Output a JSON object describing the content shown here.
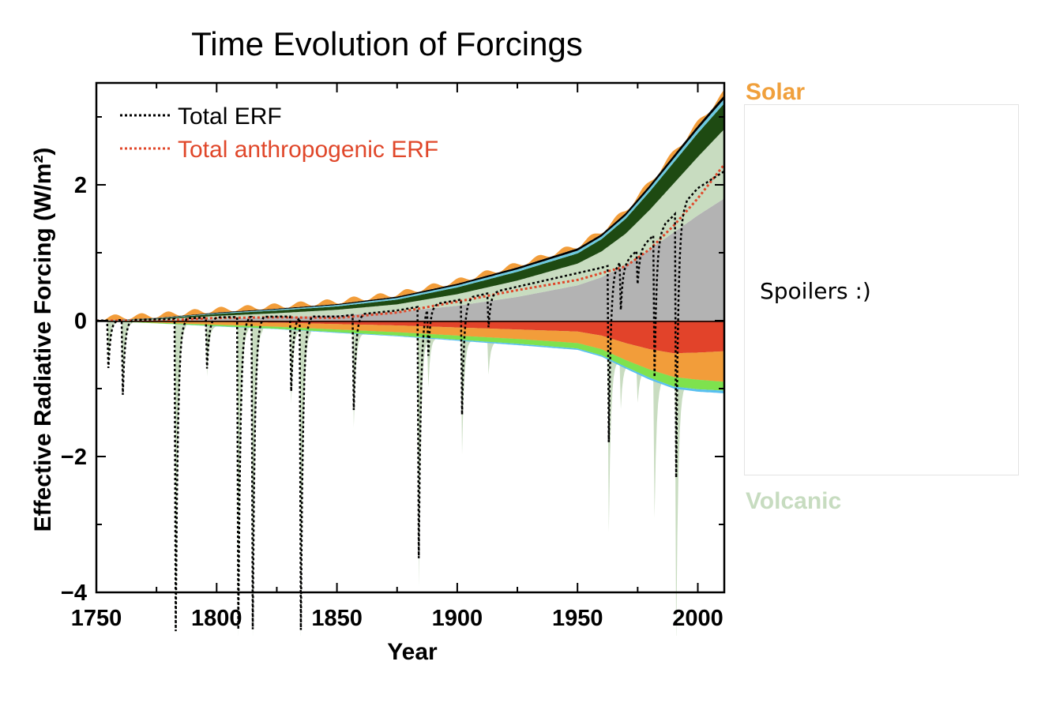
{
  "chart_data": {
    "type": "area",
    "title": "Time Evolution of Forcings",
    "xlabel": "Year",
    "ylabel": "Effective Radiative Forcing (W/m²)",
    "xlim": [
      1750,
      2011
    ],
    "ylim": [
      -4,
      3.5
    ],
    "xticks": [
      1750,
      1800,
      1850,
      1900,
      1950,
      2000
    ],
    "yticks": [
      {
        "value": 2,
        "label": "2"
      },
      {
        "value": 0,
        "label": "0"
      },
      {
        "value": -2,
        "label": "−2"
      },
      {
        "value": -4,
        "label": "−4"
      }
    ],
    "grid": false,
    "legend_position": "top-left",
    "legend": [
      {
        "label": "Total ERF",
        "color": "#000000",
        "style": "dotted"
      },
      {
        "label": "Total anthropogenic ERF",
        "color": "#e0472a",
        "style": "dotted"
      }
    ],
    "stack_positive": {
      "x": [
        1750,
        1775,
        1800,
        1825,
        1850,
        1875,
        1900,
        1925,
        1950,
        1960,
        1970,
        1980,
        1990,
        2000,
        2011
      ],
      "layers": [
        {
          "color": "#b3b3b3",
          "values": [
            0,
            0.01,
            0.03,
            0.05,
            0.08,
            0.13,
            0.22,
            0.35,
            0.52,
            0.64,
            0.82,
            1.05,
            1.3,
            1.55,
            1.8
          ]
        },
        {
          "color": "#c8dcc0",
          "values": [
            0,
            0.01,
            0.04,
            0.06,
            0.08,
            0.11,
            0.17,
            0.24,
            0.32,
            0.38,
            0.46,
            0.58,
            0.72,
            0.86,
            1.02
          ]
        },
        {
          "color": "#1e4a12",
          "values": [
            0,
            0.01,
            0.03,
            0.04,
            0.05,
            0.07,
            0.1,
            0.13,
            0.15,
            0.18,
            0.22,
            0.27,
            0.31,
            0.35,
            0.38
          ]
        },
        {
          "color": "#6cc9df",
          "values": [
            0,
            0.005,
            0.01,
            0.015,
            0.02,
            0.025,
            0.03,
            0.035,
            0.04,
            0.04,
            0.045,
            0.05,
            0.055,
            0.06,
            0.065
          ]
        },
        {
          "color": "#000000",
          "values": [
            0,
            0.005,
            0.01,
            0.012,
            0.015,
            0.02,
            0.025,
            0.03,
            0.035,
            0.035,
            0.04,
            0.045,
            0.05,
            0.05,
            0.055
          ]
        }
      ]
    },
    "stack_negative": {
      "x": [
        1750,
        1775,
        1800,
        1825,
        1850,
        1875,
        1900,
        1925,
        1950,
        1960,
        1970,
        1980,
        1990,
        2000,
        2011
      ],
      "layers": [
        {
          "color": "#e2432a",
          "values": [
            0,
            -0.01,
            -0.02,
            -0.03,
            -0.05,
            -0.07,
            -0.1,
            -0.13,
            -0.16,
            -0.22,
            -0.33,
            -0.42,
            -0.48,
            -0.47,
            -0.45
          ]
        },
        {
          "color": "#f29d3a",
          "values": [
            0,
            -0.02,
            -0.04,
            -0.06,
            -0.08,
            -0.1,
            -0.12,
            -0.14,
            -0.17,
            -0.2,
            -0.25,
            -0.3,
            -0.35,
            -0.4,
            -0.45
          ]
        },
        {
          "color": "#7ee24e",
          "values": [
            0,
            -0.01,
            -0.02,
            -0.03,
            -0.04,
            -0.05,
            -0.06,
            -0.07,
            -0.08,
            -0.09,
            -0.1,
            -0.12,
            -0.14,
            -0.14,
            -0.13
          ]
        },
        {
          "color": "#58c0f0",
          "values": [
            0,
            0,
            -0.005,
            -0.005,
            -0.01,
            -0.01,
            -0.015,
            -0.02,
            -0.02,
            -0.02,
            -0.025,
            -0.03,
            -0.03,
            -0.035,
            -0.04
          ]
        }
      ]
    },
    "solar": {
      "color": "#f29d3a",
      "amplitude": 0.08,
      "period_years": 11
    },
    "volcanic": {
      "color": "#c8dcc0",
      "eruptions": [
        {
          "year": 1755,
          "depth": 0.7
        },
        {
          "year": 1761,
          "depth": 1.1
        },
        {
          "year": 1783,
          "depth": 4.6
        },
        {
          "year": 1796,
          "depth": 0.75
        },
        {
          "year": 1809,
          "depth": 4.6
        },
        {
          "year": 1815,
          "depth": 4.6
        },
        {
          "year": 1831,
          "depth": 1.1
        },
        {
          "year": 1835,
          "depth": 4.6
        },
        {
          "year": 1857,
          "depth": 1.4
        },
        {
          "year": 1884,
          "depth": 3.7
        },
        {
          "year": 1888,
          "depth": 0.7
        },
        {
          "year": 1902,
          "depth": 1.7
        },
        {
          "year": 1913,
          "depth": 0.5
        },
        {
          "year": 1963,
          "depth": 2.6
        },
        {
          "year": 1968,
          "depth": 0.7
        },
        {
          "year": 1975,
          "depth": 0.5
        },
        {
          "year": 1982,
          "depth": 2.1
        },
        {
          "year": 1991,
          "depth": 3.9
        }
      ]
    },
    "total_anthropogenic_erf": {
      "x": [
        1750,
        1775,
        1800,
        1825,
        1850,
        1875,
        1900,
        1925,
        1950,
        1960,
        1970,
        1980,
        1990,
        2000,
        2011
      ],
      "values": [
        0,
        0.0,
        0.04,
        0.05,
        0.04,
        0.12,
        0.28,
        0.45,
        0.6,
        0.7,
        0.8,
        1.05,
        1.4,
        1.8,
        2.3
      ]
    },
    "total_erf_baseline": {
      "x": [
        1750,
        1775,
        1800,
        1825,
        1850,
        1875,
        1900,
        1925,
        1950,
        1960,
        1970,
        1980,
        1990,
        2000,
        2011
      ],
      "values": [
        0,
        0.02,
        0.05,
        0.06,
        0.06,
        0.15,
        0.3,
        0.5,
        0.7,
        0.78,
        0.88,
        1.2,
        1.55,
        1.95,
        2.2
      ]
    }
  },
  "side_labels": {
    "top": {
      "text": "Solar",
      "color": "#f0a03c"
    },
    "bottom": {
      "text": "Volcanic",
      "color": "#c7dcc0"
    }
  },
  "spoiler": {
    "text": "Spoilers :)"
  }
}
